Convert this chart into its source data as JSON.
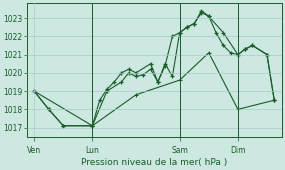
{
  "background_color": "#cce8e0",
  "grid_color": "#a8cccc",
  "line_color": "#1a5c2a",
  "title": "Pression niveau de la mer( hPa )",
  "ylim": [
    1016.5,
    1023.8
  ],
  "yticks": [
    1017,
    1018,
    1019,
    1020,
    1021,
    1022,
    1023
  ],
  "day_labels": [
    "Ven",
    "Lun",
    "Sam",
    "Dim"
  ],
  "day_positions": [
    0,
    8,
    20,
    28
  ],
  "xlim": [
    -1,
    34
  ],
  "vline_positions": [
    8,
    20,
    28
  ],
  "line1_x": [
    0,
    2,
    4,
    8,
    10,
    12,
    13,
    14,
    15,
    16,
    17,
    18,
    19,
    20,
    21,
    22,
    23,
    24,
    26,
    28,
    29,
    30,
    32,
    33
  ],
  "line1_y": [
    1019.0,
    1018.0,
    1017.1,
    1017.1,
    1019.0,
    1019.5,
    1020.0,
    1019.8,
    1019.9,
    1020.2,
    1019.5,
    1020.5,
    1019.8,
    1022.2,
    1022.5,
    1022.7,
    1023.4,
    1023.1,
    1022.2,
    1021.0,
    1021.3,
    1021.5,
    1021.0,
    1018.5
  ],
  "line2_x": [
    0,
    2,
    4,
    8,
    9,
    10,
    11,
    12,
    13,
    14,
    16,
    17,
    18,
    19,
    20,
    21,
    22,
    23,
    24,
    25,
    26,
    27,
    28,
    29,
    30,
    32,
    33
  ],
  "line2_y": [
    1019.0,
    1018.0,
    1017.1,
    1017.1,
    1018.5,
    1019.1,
    1019.5,
    1020.0,
    1020.2,
    1020.0,
    1020.5,
    1019.5,
    1020.4,
    1022.0,
    1022.2,
    1022.5,
    1022.7,
    1023.3,
    1023.1,
    1022.2,
    1021.5,
    1021.1,
    1021.0,
    1021.3,
    1021.5,
    1021.0,
    1018.5
  ],
  "line3_x": [
    0,
    8,
    14,
    20,
    24,
    28,
    33
  ],
  "line3_y": [
    1019.0,
    1017.1,
    1018.8,
    1019.6,
    1021.1,
    1018.0,
    1018.5
  ]
}
